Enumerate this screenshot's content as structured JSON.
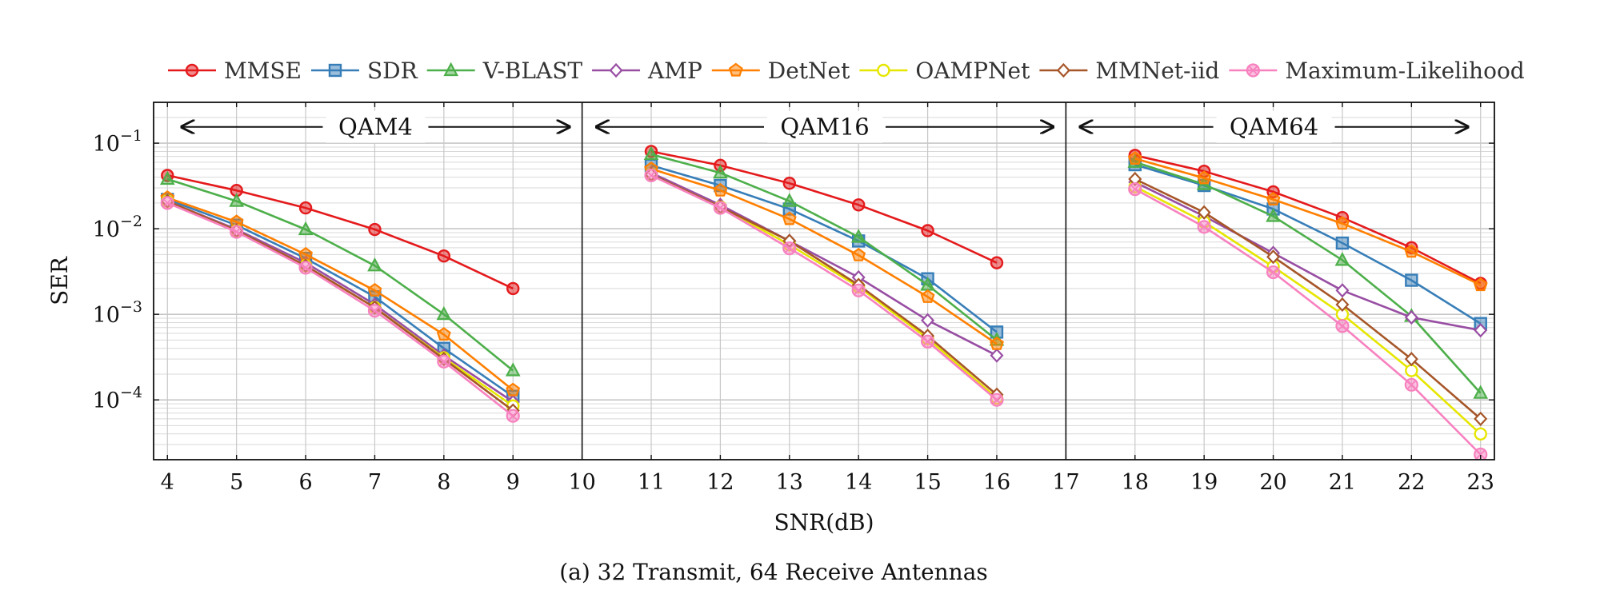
{
  "chart_data": {
    "type": "line",
    "title": "",
    "caption": "(a) 32 Transmit, 64 Receive Antennas",
    "xlabel": "SNR(dB)",
    "ylabel": "SER",
    "y_scale": "log",
    "xlim": [
      3.8,
      23.2
    ],
    "ylim": [
      2e-05,
      0.3
    ],
    "x_ticks": [
      4,
      5,
      6,
      7,
      8,
      9,
      10,
      11,
      12,
      13,
      14,
      15,
      16,
      17,
      18,
      19,
      20,
      21,
      22,
      23
    ],
    "x_tick_labels": [
      "4",
      "5",
      "6",
      "7",
      "8",
      "9",
      "10",
      "11",
      "12",
      "13",
      "14",
      "15",
      "16",
      "17",
      "18",
      "19",
      "20",
      "21",
      "22",
      "23"
    ],
    "y_ticks": [
      0.1,
      0.01,
      0.001,
      0.0001
    ],
    "y_tick_labels": [
      {
        "base": "10",
        "exp": "−1"
      },
      {
        "base": "10",
        "exp": "−2"
      },
      {
        "base": "10",
        "exp": "−3"
      },
      {
        "base": "10",
        "exp": "−4"
      }
    ],
    "grid": true,
    "legend_position": "top",
    "region_dividers": [
      10,
      17
    ],
    "regions": [
      {
        "label": "QAM4",
        "x_start": 4,
        "x_end": 10
      },
      {
        "label": "QAM16",
        "x_start": 10,
        "x_end": 17
      },
      {
        "label": "QAM64",
        "x_start": 17,
        "x_end": 23
      }
    ],
    "series": [
      {
        "name": "MMSE",
        "color": "#e41a1c",
        "marker": "circle",
        "segments": [
          {
            "x": [
              4,
              5,
              6,
              7,
              8,
              9
            ],
            "y": [
              0.042,
              0.028,
              0.0175,
              0.0098,
              0.0048,
              0.002
            ]
          },
          {
            "x": [
              11,
              12,
              13,
              14,
              15,
              16
            ],
            "y": [
              0.08,
              0.055,
              0.034,
              0.019,
              0.0095,
              0.004
            ]
          },
          {
            "x": [
              18,
              19,
              20,
              21,
              22,
              23
            ],
            "y": [
              0.072,
              0.047,
              0.027,
              0.0135,
              0.006,
              0.0023
            ]
          }
        ]
      },
      {
        "name": "SDR",
        "color": "#377eb8",
        "marker": "square",
        "segments": [
          {
            "x": [
              4,
              5,
              6,
              7,
              8,
              9
            ],
            "y": [
              0.022,
              0.011,
              0.0045,
              0.0016,
              0.0004,
              0.00011
            ]
          },
          {
            "x": [
              11,
              12,
              13,
              14,
              15,
              16
            ],
            "y": [
              0.055,
              0.032,
              0.017,
              0.0072,
              0.0026,
              0.00062
            ]
          },
          {
            "x": [
              18,
              19,
              20,
              21,
              22,
              23
            ],
            "y": [
              0.056,
              0.032,
              0.017,
              0.0068,
              0.0025,
              0.00078
            ]
          }
        ]
      },
      {
        "name": "V-BLAST",
        "color": "#4daf4a",
        "marker": "triangle",
        "segments": [
          {
            "x": [
              4,
              5,
              6,
              7,
              8,
              9
            ],
            "y": [
              0.038,
              0.021,
              0.0098,
              0.0037,
              0.001,
              0.00022
            ]
          },
          {
            "x": [
              11,
              12,
              13,
              14,
              15,
              16
            ],
            "y": [
              0.074,
              0.045,
              0.021,
              0.008,
              0.0022,
              0.0005
            ]
          },
          {
            "x": [
              18,
              19,
              20,
              21,
              22,
              23
            ],
            "y": [
              0.06,
              0.033,
              0.014,
              0.0043,
              0.00095,
              0.00012
            ]
          }
        ]
      },
      {
        "name": "AMP",
        "color": "#984ea3",
        "marker": "diamond",
        "segments": [
          {
            "x": [
              4,
              5,
              6,
              7,
              8,
              9
            ],
            "y": [
              0.021,
              0.0098,
              0.004,
              0.0013,
              0.00033,
              9.5e-05
            ]
          },
          {
            "x": [
              11,
              12,
              13,
              14,
              15,
              16
            ],
            "y": [
              0.045,
              0.019,
              0.0072,
              0.0027,
              0.00085,
              0.00033
            ]
          },
          {
            "x": [
              18,
              19,
              20,
              21,
              22,
              23
            ],
            "y": [
              0.035,
              0.014,
              0.0052,
              0.0019,
              0.00092,
              0.00065
            ]
          }
        ]
      },
      {
        "name": "DetNet",
        "color": "#ff7f00",
        "marker": "pentagon",
        "segments": [
          {
            "x": [
              4,
              5,
              6,
              7,
              8,
              9
            ],
            "y": [
              0.023,
              0.012,
              0.005,
              0.0019,
              0.00058,
              0.00013
            ]
          },
          {
            "x": [
              11,
              12,
              13,
              14,
              15,
              16
            ],
            "y": [
              0.05,
              0.028,
              0.013,
              0.0049,
              0.0016,
              0.00045
            ]
          },
          {
            "x": [
              18,
              19,
              20,
              21,
              22,
              23
            ],
            "y": [
              0.066,
              0.039,
              0.022,
              0.0115,
              0.0054,
              0.0022
            ]
          }
        ]
      },
      {
        "name": "OAMPNet",
        "color": "#e6e600",
        "marker": "circle-open",
        "segments": [
          {
            "x": [
              4,
              5,
              6,
              7,
              8,
              9
            ],
            "y": [
              0.021,
              0.0095,
              0.0037,
              0.0012,
              0.00031,
              8.5e-05
            ]
          },
          {
            "x": [
              11,
              12,
              13,
              14,
              15,
              16
            ],
            "y": [
              0.043,
              0.018,
              0.0065,
              0.0021,
              0.00052,
              0.000105
            ]
          },
          {
            "x": [
              18,
              19,
              20,
              21,
              22,
              23
            ],
            "y": [
              0.031,
              0.012,
              0.0036,
              0.001,
              0.00022,
              4e-05
            ]
          }
        ]
      },
      {
        "name": "MMNet-iid",
        "color": "#a65628",
        "marker": "diamond",
        "segments": [
          {
            "x": [
              4,
              5,
              6,
              7,
              8,
              9
            ],
            "y": [
              0.021,
              0.0095,
              0.0037,
              0.0012,
              0.0003,
              7.5e-05
            ]
          },
          {
            "x": [
              11,
              12,
              13,
              14,
              15,
              16
            ],
            "y": [
              0.043,
              0.018,
              0.0072,
              0.0022,
              0.00056,
              0.000115
            ]
          },
          {
            "x": [
              18,
              19,
              20,
              21,
              22,
              23
            ],
            "y": [
              0.038,
              0.0155,
              0.0047,
              0.0013,
              0.0003,
              6e-05
            ]
          }
        ]
      },
      {
        "name": "Maximum-Likelihood",
        "color": "#f781bf",
        "marker": "circle-x",
        "segments": [
          {
            "x": [
              4,
              5,
              6,
              7,
              8,
              9
            ],
            "y": [
              0.02,
              0.0092,
              0.0035,
              0.0011,
              0.00028,
              6.5e-05
            ]
          },
          {
            "x": [
              11,
              12,
              13,
              14,
              15,
              16
            ],
            "y": [
              0.042,
              0.0175,
              0.0059,
              0.0019,
              0.00048,
              0.0001
            ]
          },
          {
            "x": [
              18,
              19,
              20,
              21,
              22,
              23
            ],
            "y": [
              0.029,
              0.0105,
              0.0031,
              0.00073,
              0.00015,
              2.3e-05
            ]
          }
        ]
      }
    ]
  }
}
